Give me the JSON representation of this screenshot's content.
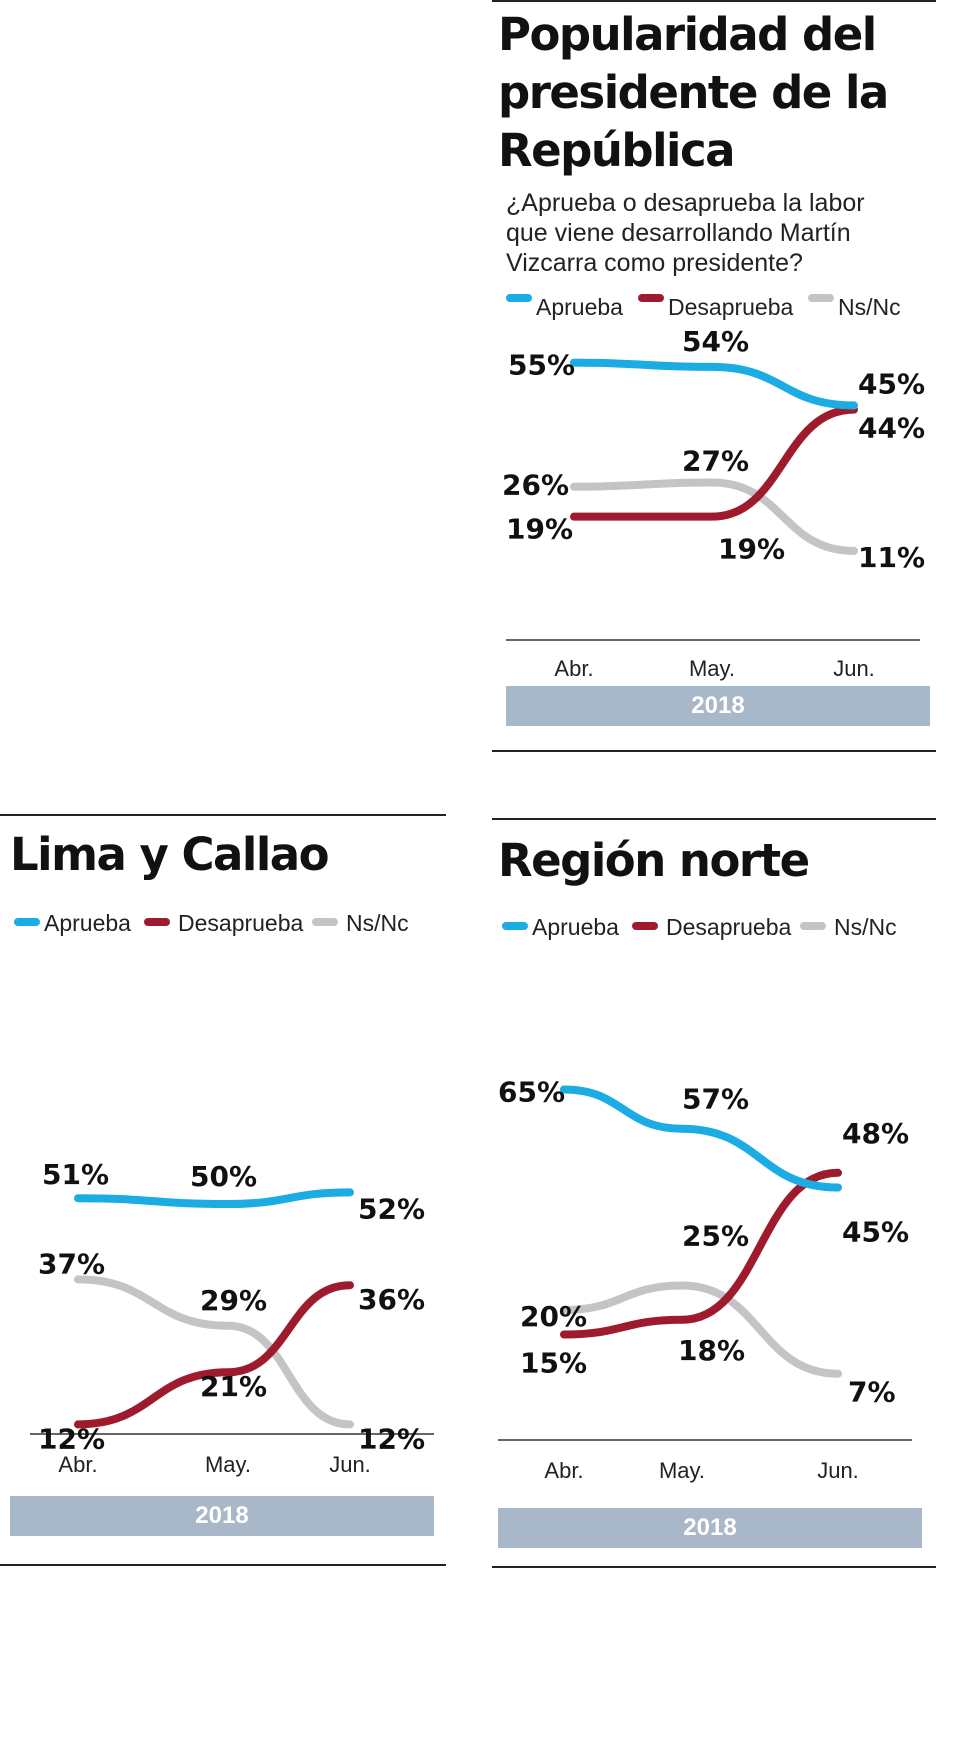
{
  "colors": {
    "aprueba": "#1aace3",
    "desaprueba": "#9e1b2e",
    "nsnc": "#c4c4c6"
  },
  "legend": [
    "Aprueba",
    "Desaprueba",
    "Ns/Nc"
  ],
  "chart_data": [
    {
      "type": "line",
      "title": "Popularidad del presidente de la República",
      "subtitle": "¿Aprueba o desaprueba la labor que viene desarrollando Martín Vizcarra como presidente?",
      "categories": [
        "Abr.",
        "May.",
        "Jun."
      ],
      "year": "2018",
      "series": [
        {
          "name": "Aprueba",
          "values": [
            55,
            54,
            45
          ],
          "labels": [
            "55%",
            "54%",
            "45%"
          ]
        },
        {
          "name": "Desaprueba",
          "values": [
            19,
            19,
            44
          ],
          "labels": [
            "19%",
            "19%",
            "44%"
          ]
        },
        {
          "name": "Ns/Nc",
          "values": [
            26,
            27,
            11
          ],
          "labels": [
            "26%",
            "27%",
            "11%"
          ]
        }
      ]
    },
    {
      "type": "line",
      "title": "Lima y Callao",
      "categories": [
        "Abr.",
        "May.",
        "Jun."
      ],
      "year": "2018",
      "series": [
        {
          "name": "Aprueba",
          "values": [
            51,
            50,
            52
          ],
          "labels": [
            "51%",
            "50%",
            "52%"
          ]
        },
        {
          "name": "Desaprueba",
          "values": [
            12,
            21,
            36
          ],
          "labels": [
            "12%",
            "21%",
            "36%"
          ]
        },
        {
          "name": "Ns/Nc",
          "values": [
            37,
            29,
            12
          ],
          "labels": [
            "37%",
            "29%",
            "12%"
          ]
        }
      ]
    },
    {
      "type": "line",
      "title": "Región norte",
      "categories": [
        "Abr.",
        "May.",
        "Jun."
      ],
      "year": "2018",
      "series": [
        {
          "name": "Aprueba",
          "values": [
            65,
            57,
            45
          ],
          "labels": [
            "65%",
            "57%",
            "45%"
          ]
        },
        {
          "name": "Desaprueba",
          "values": [
            15,
            18,
            48
          ],
          "labels": [
            "15%",
            "18%",
            "48%"
          ]
        },
        {
          "name": "Ns/Nc",
          "values": [
            20,
            25,
            7
          ],
          "labels": [
            "20%",
            "25%",
            "7%"
          ]
        }
      ]
    }
  ]
}
